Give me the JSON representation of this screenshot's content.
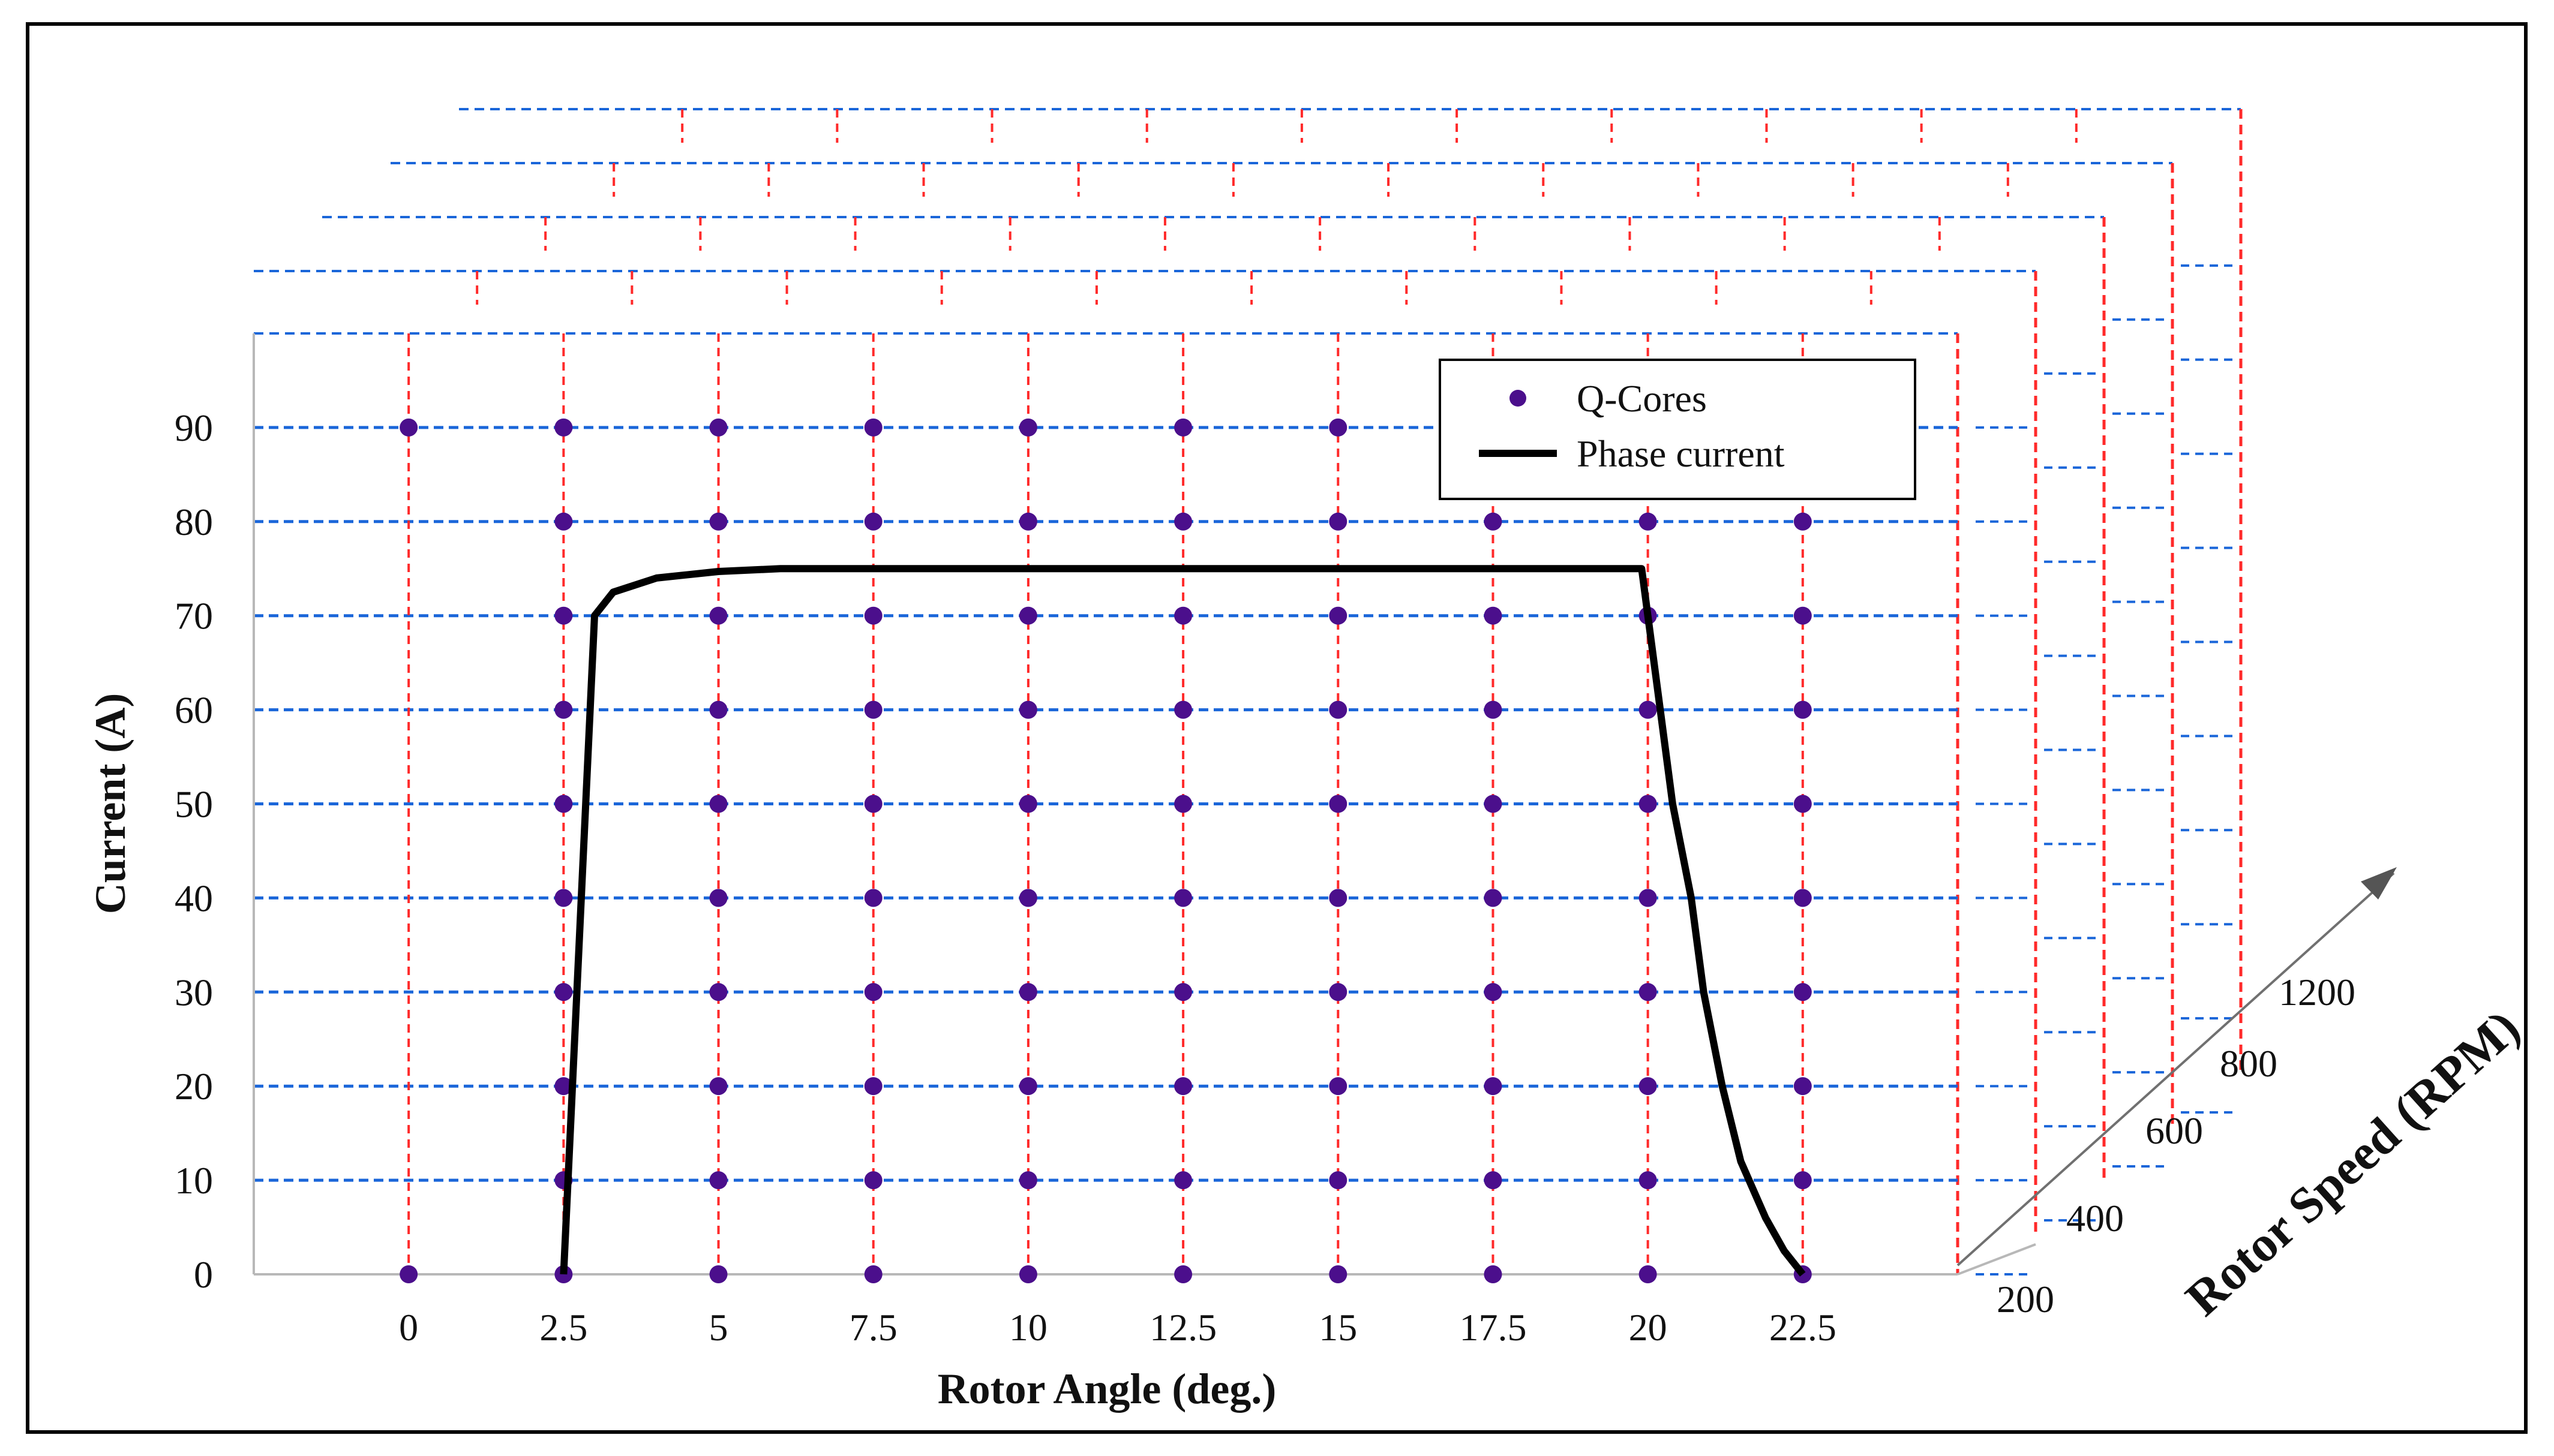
{
  "chart_data": {
    "type": "scatter",
    "xlabel": "Rotor Angle (deg.)",
    "ylabel": "Current (A)",
    "zlabel": "Rotor Speed (RPM)",
    "x_ticks": [
      "0",
      "2.5",
      "5",
      "7.5",
      "10",
      "12.5",
      "15",
      "17.5",
      "20",
      "22.5"
    ],
    "y_ticks": [
      "0",
      "10",
      "20",
      "30",
      "40",
      "50",
      "60",
      "70",
      "80",
      "90"
    ],
    "z_ticks": [
      "200",
      "400",
      "600",
      "800",
      "1200"
    ],
    "xlim": [
      -2.5,
      25
    ],
    "ylim": [
      0,
      100
    ],
    "grid": true,
    "legend_position": "top-right",
    "colors": {
      "marker": "#4b0f8c",
      "phase_current": "#000000",
      "grid_horizontal": "#1a66d9",
      "grid_vertical": "#ff2a2a"
    },
    "series": [
      {
        "name": "Q-Cores",
        "kind": "scatter",
        "x": [
          0,
          2.5,
          5,
          7.5,
          10,
          12.5,
          15,
          17.5,
          20,
          22.5
        ],
        "y": [
          0,
          10,
          20,
          30,
          40,
          50,
          60,
          70,
          80,
          90
        ],
        "missing_points": [
          [
            0,
            10
          ],
          [
            0,
            20
          ],
          [
            0,
            30
          ],
          [
            0,
            40
          ],
          [
            0,
            50
          ],
          [
            0,
            60
          ],
          [
            0,
            70
          ],
          [
            0,
            80
          ],
          [
            17.5,
            90
          ],
          [
            20,
            90
          ],
          [
            22.5,
            90
          ]
        ]
      },
      {
        "name": "Phase current",
        "kind": "line",
        "points": [
          [
            2.5,
            0
          ],
          [
            3.0,
            70
          ],
          [
            3.3,
            72.5
          ],
          [
            4.0,
            74
          ],
          [
            5.0,
            74.7
          ],
          [
            6.0,
            75
          ],
          [
            10,
            75
          ],
          [
            15,
            75
          ],
          [
            19.9,
            75
          ],
          [
            20.2,
            60
          ],
          [
            20.4,
            50
          ],
          [
            20.7,
            40
          ],
          [
            20.9,
            30
          ],
          [
            21.2,
            20
          ],
          [
            21.5,
            12
          ],
          [
            21.9,
            6
          ],
          [
            22.2,
            2.5
          ],
          [
            22.5,
            0
          ]
        ]
      }
    ]
  }
}
